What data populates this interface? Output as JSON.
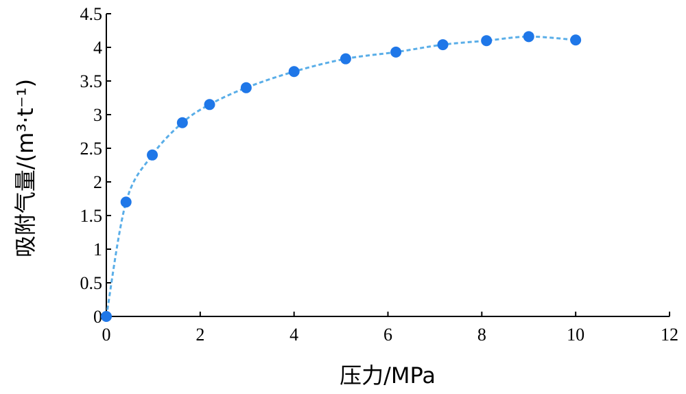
{
  "chart_data": {
    "type": "scatter",
    "xlabel": "压力/MPa",
    "ylabel": "吸附气量/(m³·t⁻¹)",
    "xlim": [
      0,
      12
    ],
    "ylim": [
      0,
      4.5
    ],
    "xticks": [
      0,
      2,
      4,
      6,
      8,
      10,
      12
    ],
    "yticks": [
      0,
      0.5,
      1,
      1.5,
      2,
      2.5,
      3,
      3.5,
      4,
      4.5
    ],
    "xtick_labels": [
      "0",
      "2",
      "4",
      "6",
      "8",
      "10",
      "12"
    ],
    "ytick_labels": [
      "0",
      "0.5",
      "1",
      "1.5",
      "2",
      "2.5",
      "3",
      "3.5",
      "4",
      "4.5"
    ],
    "grid": false,
    "series": [
      {
        "x": [
          0,
          0.42,
          0.98,
          1.62,
          2.2,
          2.98,
          4.0,
          5.1,
          6.17,
          7.17,
          8.1,
          9.0,
          10.0
        ],
        "y": [
          0,
          1.7,
          2.4,
          2.88,
          3.15,
          3.4,
          3.64,
          3.83,
          3.93,
          4.04,
          4.1,
          4.16,
          4.11
        ],
        "color": "#1f77e8",
        "marker": "circle"
      }
    ],
    "fit_line": {
      "style": "dashed",
      "color": "#5aaee8"
    }
  }
}
